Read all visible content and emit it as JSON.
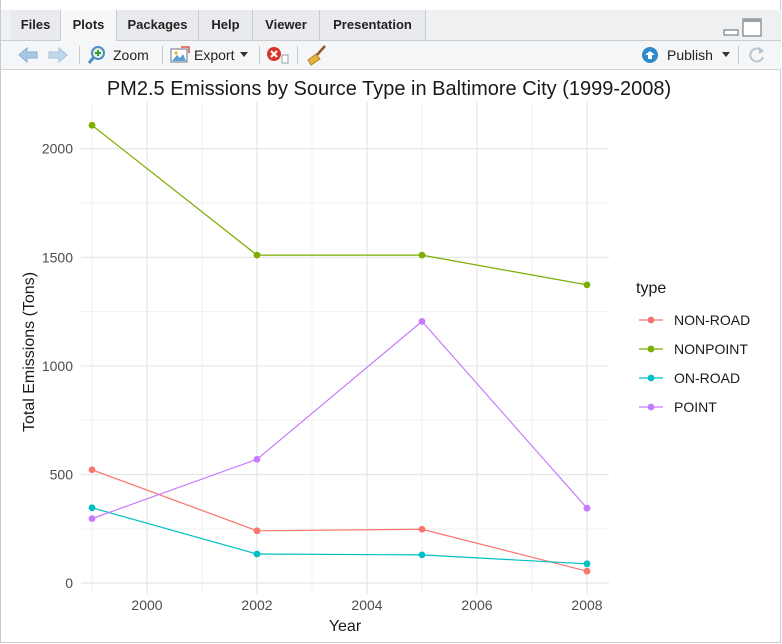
{
  "tabs": [
    {
      "label": "Files",
      "active": false
    },
    {
      "label": "Plots",
      "active": true
    },
    {
      "label": "Packages",
      "active": false
    },
    {
      "label": "Help",
      "active": false
    },
    {
      "label": "Viewer",
      "active": false
    },
    {
      "label": "Presentation",
      "active": false
    }
  ],
  "toolbar": {
    "zoom_label": "Zoom",
    "export_label": "Export",
    "publish_label": "Publish",
    "icons": [
      "arrow-left-icon",
      "arrow-right-icon",
      "zoom-icon",
      "export-icon",
      "remove-plot-icon",
      "broom-icon",
      "publish-icon",
      "refresh-icon"
    ]
  },
  "chart_data": {
    "type": "line",
    "title": "PM2.5 Emissions by Source Type in Baltimore City (1999-2008)",
    "xlabel": "Year",
    "ylabel": "Total Emissions (Tons)",
    "xlim": [
      1998.8,
      2008.4
    ],
    "ylim": [
      -50,
      2215
    ],
    "x_ticks": [
      2000,
      2002,
      2004,
      2006,
      2008
    ],
    "y_ticks": [
      0,
      500,
      1000,
      1500,
      2000
    ],
    "x_tick_labels": [
      "2000",
      "2002",
      "2004",
      "2006",
      "2008"
    ],
    "y_tick_labels": [
      "0",
      "500",
      "1000",
      "1500",
      "2000"
    ],
    "x": [
      1999,
      2002,
      2005,
      2008
    ],
    "grid": true,
    "legend": {
      "title": "type",
      "position": "right"
    },
    "series": [
      {
        "name": "NON-ROAD",
        "color": "#F8766D",
        "values": [
          522,
          241,
          248,
          55
        ]
      },
      {
        "name": "NONPOINT",
        "color": "#7CAE00",
        "values": [
          2108,
          1510,
          1510,
          1373
        ]
      },
      {
        "name": "ON-ROAD",
        "color": "#00BFC4",
        "values": [
          347,
          134,
          130,
          89
        ]
      },
      {
        "name": "POINT",
        "color": "#C77CFF",
        "values": [
          297,
          570,
          1205,
          345
        ]
      }
    ]
  }
}
